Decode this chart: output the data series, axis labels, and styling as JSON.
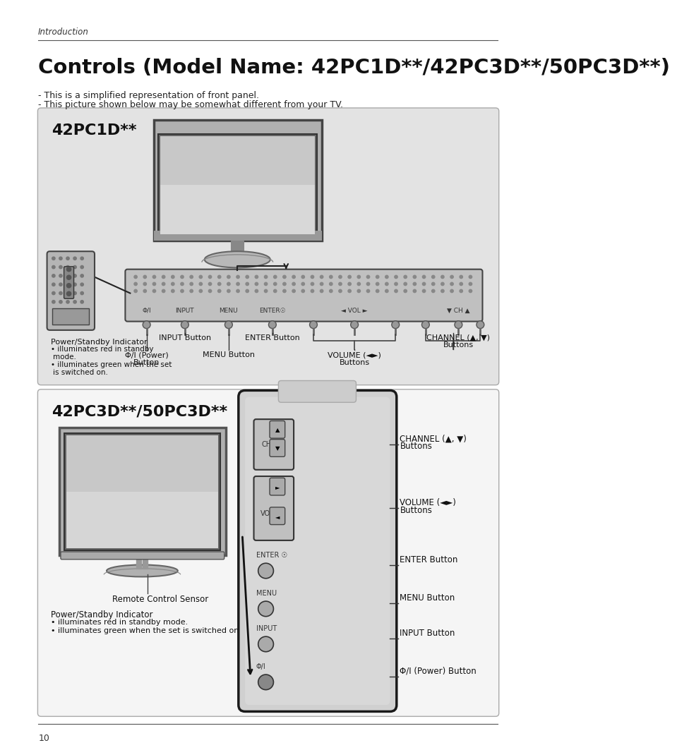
{
  "page_bg": "#ffffff",
  "header_text": "Introduction",
  "title": "Controls (Model Name: 42PC1D**/42PC3D**/50PC3D**)",
  "subtitle_line1": "- This is a simplified representation of front panel.",
  "subtitle_line2": "- This picture shown below may be somewhat different from your TV.",
  "section1_label": "42PC1D**",
  "section2_label": "42PC3D**/50PC3D**",
  "box1_bg": "#e3e3e3",
  "box2_bg": "#f5f5f5",
  "footer_text": "10",
  "gray_panel": "#c8c8c8",
  "dark_gray": "#555555",
  "mid_gray": "#aaaaaa",
  "light_gray": "#d8d8d8",
  "remote_panel_bg": "#d0d0d0"
}
